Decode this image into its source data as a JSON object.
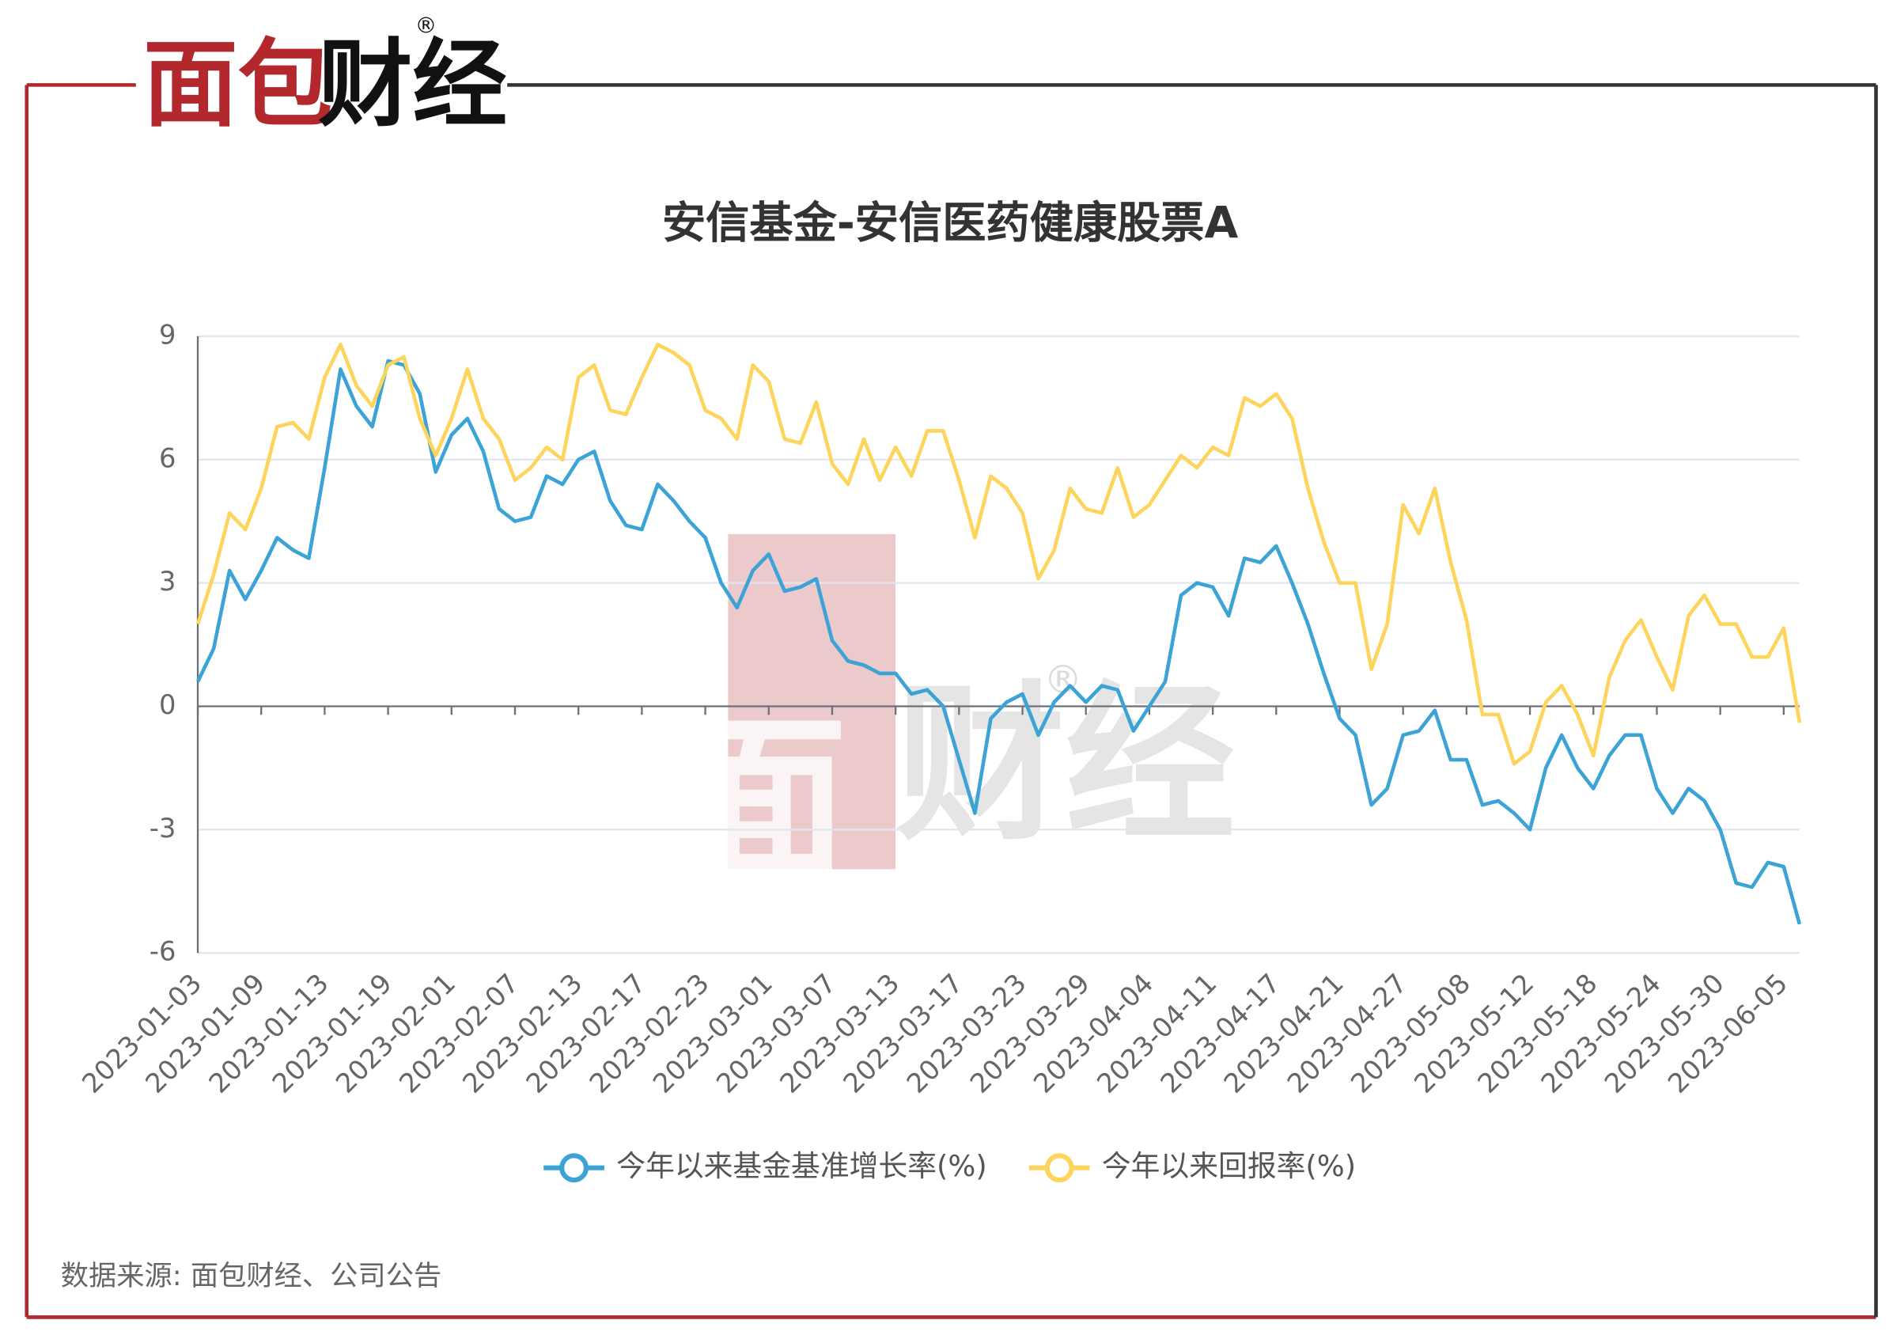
{
  "logo": {
    "red": "面包",
    "black": "财经",
    "mark": "®"
  },
  "source": "数据来源: 面包财经、公司公告",
  "chart_data": {
    "type": "line",
    "title": "安信基金-安信医药健康股票A",
    "categories": [
      "2023-01-03",
      null,
      null,
      null,
      "2023-01-09",
      null,
      null,
      null,
      "2023-01-13",
      null,
      null,
      null,
      "2023-01-19",
      null,
      null,
      null,
      "2023-02-01",
      null,
      null,
      null,
      "2023-02-07",
      null,
      null,
      null,
      "2023-02-13",
      null,
      null,
      null,
      "2023-02-17",
      null,
      null,
      null,
      "2023-02-23",
      null,
      null,
      null,
      "2023-03-01",
      null,
      null,
      null,
      "2023-03-07",
      null,
      null,
      null,
      "2023-03-13",
      null,
      null,
      null,
      "2023-03-17",
      null,
      null,
      null,
      "2023-03-23",
      null,
      null,
      null,
      "2023-03-29",
      null,
      null,
      null,
      "2023-04-04",
      null,
      null,
      null,
      "2023-04-11",
      null,
      null,
      null,
      "2023-04-17",
      null,
      null,
      null,
      "2023-04-21",
      null,
      null,
      null,
      "2023-04-27",
      null,
      null,
      null,
      "2023-05-08",
      null,
      null,
      null,
      "2023-05-12",
      null,
      null,
      null,
      "2023-05-18",
      null,
      null,
      null,
      "2023-05-24",
      null,
      null,
      null,
      "2023-05-30",
      null,
      null,
      null,
      "2023-06-05",
      null
    ],
    "series": [
      {
        "name": "今年以来基金基准增长率(%)",
        "color": "#3ba3d6",
        "values": [
          0.6,
          1.4,
          3.3,
          2.6,
          3.3,
          4.1,
          3.8,
          3.6,
          5.8,
          8.2,
          7.3,
          6.8,
          8.4,
          8.3,
          7.6,
          5.7,
          6.6,
          7.0,
          6.2,
          4.8,
          4.5,
          4.6,
          5.6,
          5.4,
          6.0,
          6.2,
          5.0,
          4.4,
          4.3,
          5.4,
          5.0,
          4.5,
          4.1,
          3.0,
          2.4,
          3.3,
          3.7,
          2.8,
          2.9,
          3.1,
          1.6,
          1.1,
          1.0,
          0.8,
          0.8,
          0.3,
          0.4,
          0.0,
          -1.3,
          -2.6,
          -0.3,
          0.1,
          0.3,
          -0.7,
          0.1,
          0.5,
          0.1,
          0.5,
          0.4,
          -0.6,
          0.0,
          0.6,
          2.7,
          3.0,
          2.9,
          2.2,
          3.6,
          3.5,
          3.9,
          3.0,
          2.0,
          0.8,
          -0.3,
          -0.7,
          -2.4,
          -2.0,
          -0.7,
          -0.6,
          -0.1,
          -1.3,
          -1.3,
          -2.4,
          -2.3,
          -2.6,
          -3.0,
          -1.5,
          -0.7,
          -1.5,
          -2.0,
          -1.2,
          -0.7,
          -0.7,
          -2.0,
          -2.6,
          -2.0,
          -2.3,
          -3.0,
          -4.3,
          -4.4,
          -3.8,
          -3.9,
          -5.3
        ]
      },
      {
        "name": "今年以来回报率(%)",
        "color": "#fdd45c",
        "values": [
          2.0,
          3.2,
          4.7,
          4.3,
          5.3,
          6.8,
          6.9,
          6.5,
          8.0,
          8.8,
          7.8,
          7.3,
          8.3,
          8.5,
          7.0,
          6.1,
          7.0,
          8.2,
          7.0,
          6.5,
          5.5,
          5.8,
          6.3,
          6.0,
          8.0,
          8.3,
          7.2,
          7.1,
          8.0,
          8.8,
          8.6,
          8.3,
          7.2,
          7.0,
          6.5,
          8.3,
          7.9,
          6.5,
          6.4,
          7.4,
          5.9,
          5.4,
          6.5,
          5.5,
          6.3,
          5.6,
          6.7,
          6.7,
          5.5,
          4.1,
          5.6,
          5.3,
          4.7,
          3.1,
          3.8,
          5.3,
          4.8,
          4.7,
          5.8,
          4.6,
          4.9,
          5.5,
          6.1,
          5.8,
          6.3,
          6.1,
          7.5,
          7.3,
          7.6,
          7.0,
          5.3,
          4.0,
          3.0,
          3.0,
          0.9,
          2.0,
          4.9,
          4.2,
          5.3,
          3.5,
          2.1,
          -0.2,
          -0.2,
          -1.4,
          -1.1,
          0.1,
          0.5,
          -0.2,
          -1.2,
          0.7,
          1.6,
          2.1,
          1.2,
          0.4,
          2.2,
          2.7,
          2.0,
          2.0,
          1.2,
          1.2,
          1.9,
          -0.4
        ]
      }
    ],
    "ylim": [
      -6,
      9
    ],
    "yticks": [
      -6,
      -3,
      0,
      3,
      6,
      9
    ],
    "grid": true,
    "legend": "bottom"
  }
}
